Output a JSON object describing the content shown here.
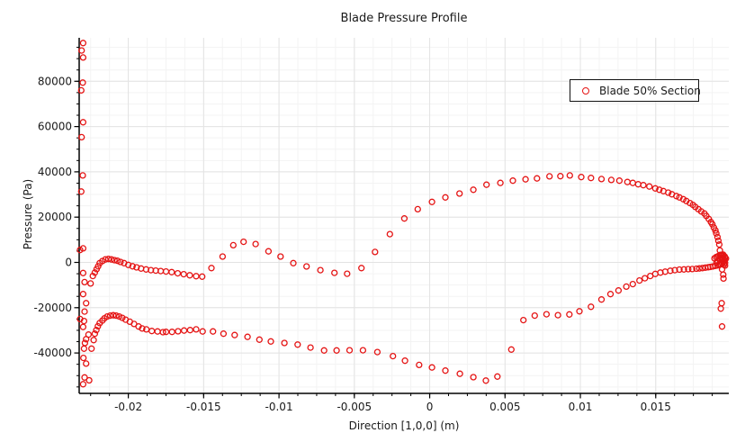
{
  "chart_data": {
    "type": "scatter",
    "title": "Blade Pressure Profile",
    "xlabel": "Direction [1,0,0] (m)",
    "ylabel": "Pressure (Pa)",
    "xlim": [
      -0.02326,
      0.01985
    ],
    "ylim": [
      -57850,
      99200
    ],
    "grid": true,
    "grid_major_color": "#e3e3e3",
    "grid_minor_color": "#f3f3f3",
    "axis_color": "#000000",
    "x_major_ticks": {
      "values": [
        -0.02,
        -0.015,
        -0.01,
        -0.005,
        0,
        0.005,
        0.01,
        0.015
      ],
      "labels": [
        "-0.02",
        "-0.015",
        "-0.01",
        "-0.005",
        "0",
        "0.005",
        "0.01",
        "0.015"
      ]
    },
    "x_minor_step": 0.00125,
    "y_major_ticks": {
      "values": [
        80000,
        60000,
        40000,
        20000,
        0,
        -20000,
        -40000
      ],
      "labels": [
        "80000",
        "60000",
        "40000",
        "20000",
        "0",
        "-20000",
        "-40000"
      ]
    },
    "y_minor_step": 5000,
    "legend": {
      "position": "top-right",
      "label": "Blade 50% Section"
    },
    "marker": {
      "shape": "open-circle",
      "color": "#e51414",
      "radius": 3
    },
    "series": [
      {
        "name": "Blade 50% Section",
        "points": [
          [
            -0.023,
            96900
          ],
          [
            -0.0231,
            93600
          ],
          [
            -0.023,
            90500
          ],
          [
            -0.02302,
            79400
          ],
          [
            -0.02312,
            76000
          ],
          [
            -0.023,
            61900
          ],
          [
            -0.0231,
            55300
          ],
          [
            -0.02302,
            38400
          ],
          [
            -0.02312,
            31300
          ],
          [
            -0.023,
            6200
          ],
          [
            -0.0232,
            5500
          ],
          [
            -0.023,
            -4700
          ],
          [
            -0.0229,
            -8700
          ],
          [
            -0.0225,
            -9300
          ],
          [
            -0.02235,
            -6000
          ],
          [
            -0.02222,
            -4500
          ],
          [
            -0.0221,
            -3000
          ],
          [
            -0.022,
            -1700
          ],
          [
            -0.0219,
            -300
          ],
          [
            -0.02172,
            600
          ],
          [
            -0.02152,
            1300
          ],
          [
            -0.02132,
            1500
          ],
          [
            -0.02112,
            1300
          ],
          [
            -0.02092,
            1000
          ],
          [
            -0.02072,
            700
          ],
          [
            -0.02052,
            200
          ],
          [
            -0.02028,
            -300
          ],
          [
            -0.02,
            -1100
          ],
          [
            -0.01972,
            -1700
          ],
          [
            -0.01945,
            -2200
          ],
          [
            -0.01915,
            -2700
          ],
          [
            -0.01882,
            -3100
          ],
          [
            -0.0185,
            -3400
          ],
          [
            -0.01818,
            -3600
          ],
          [
            -0.01785,
            -3800
          ],
          [
            -0.0175,
            -4000
          ],
          [
            -0.01712,
            -4300
          ],
          [
            -0.01672,
            -4800
          ],
          [
            -0.01632,
            -5200
          ],
          [
            -0.01592,
            -5700
          ],
          [
            -0.0155,
            -6100
          ],
          [
            -0.0151,
            -6300
          ],
          [
            -0.01448,
            -2500
          ],
          [
            -0.01374,
            2600
          ],
          [
            -0.01303,
            7600
          ],
          [
            -0.01235,
            9100
          ],
          [
            -0.01155,
            8100
          ],
          [
            -0.0107,
            4900
          ],
          [
            -0.0099,
            2600
          ],
          [
            -0.00905,
            -300
          ],
          [
            -0.00817,
            -1800
          ],
          [
            -0.00725,
            -3400
          ],
          [
            -0.00632,
            -4600
          ],
          [
            -0.00548,
            -5000
          ],
          [
            -0.00453,
            -2500
          ],
          [
            -0.00363,
            4600
          ],
          [
            -0.00264,
            12500
          ],
          [
            -0.00168,
            19400
          ],
          [
            -0.00079,
            23500
          ],
          [
            0.00015,
            26700
          ],
          [
            0.00104,
            28700
          ],
          [
            0.00198,
            30400
          ],
          [
            0.0029,
            32100
          ],
          [
            0.00377,
            34300
          ],
          [
            0.00469,
            35100
          ],
          [
            0.00552,
            36100
          ],
          [
            0.00636,
            36700
          ],
          [
            0.00712,
            37100
          ],
          [
            0.00795,
            38000
          ],
          [
            0.00867,
            38100
          ],
          [
            0.0093,
            38400
          ],
          [
            0.01006,
            37700
          ],
          [
            0.0107,
            37300
          ],
          [
            0.0114,
            36800
          ],
          [
            0.01205,
            36400
          ],
          [
            0.01259,
            36100
          ],
          [
            0.01312,
            35500
          ],
          [
            0.01348,
            35100
          ],
          [
            0.01384,
            34500
          ],
          [
            0.01418,
            34100
          ],
          [
            0.01458,
            33500
          ],
          [
            0.01497,
            32700
          ],
          [
            0.01524,
            32100
          ],
          [
            0.01551,
            31500
          ],
          [
            0.01583,
            30800
          ],
          [
            0.01607,
            30100
          ],
          [
            0.01637,
            29300
          ],
          [
            0.01657,
            28700
          ],
          [
            0.01683,
            27900
          ],
          [
            0.01703,
            27100
          ],
          [
            0.01727,
            26200
          ],
          [
            0.01747,
            25400
          ],
          [
            0.01763,
            24500
          ],
          [
            0.01783,
            23500
          ],
          [
            0.01802,
            22500
          ],
          [
            0.01823,
            21600
          ],
          [
            0.01836,
            20500
          ],
          [
            0.01852,
            19200
          ],
          [
            0.01866,
            17800
          ],
          [
            0.01876,
            16800
          ],
          [
            0.01886,
            15400
          ],
          [
            0.01896,
            14100
          ],
          [
            0.01902,
            12800
          ],
          [
            0.0191,
            11200
          ],
          [
            0.01916,
            9600
          ],
          [
            0.01922,
            7900
          ],
          [
            0.01926,
            5300
          ],
          [
            0.0193,
            3300
          ],
          [
            0.0189,
            1800
          ],
          [
            0.019,
            2300
          ],
          [
            0.0191,
            2600
          ],
          [
            0.01918,
            2900
          ],
          [
            0.01928,
            3100
          ],
          [
            0.01938,
            3300
          ],
          [
            0.01948,
            3400
          ],
          [
            0.0195,
            2900
          ],
          [
            0.01958,
            2600
          ],
          [
            0.0196,
            2100
          ],
          [
            0.01966,
            1700
          ],
          [
            0.0195,
            1400
          ],
          [
            0.0194,
            1000
          ],
          [
            0.01958,
            800
          ],
          [
            0.0195,
            300
          ],
          [
            0.0196,
            -200
          ],
          [
            0.01942,
            -600
          ],
          [
            0.01952,
            -1000
          ],
          [
            0.0196,
            -1400
          ],
          [
            0.01934,
            2000
          ],
          [
            0.01924,
            1200
          ],
          [
            0.01912,
            500
          ],
          [
            0.01904,
            -100
          ],
          [
            0.0194,
            -3100
          ],
          [
            0.01948,
            -5400
          ],
          [
            0.0195,
            -7100
          ],
          [
            0.01938,
            -18000
          ],
          [
            0.01932,
            -20400
          ],
          [
            0.0194,
            -28300
          ],
          [
            -0.023,
            -14000
          ],
          [
            -0.0228,
            -18000
          ],
          [
            -0.0229,
            -21700
          ],
          [
            -0.0232,
            -25000
          ],
          [
            -0.02294,
            -25900
          ],
          [
            -0.023,
            -28500
          ],
          [
            -0.02264,
            -31900
          ],
          [
            -0.0228,
            -33900
          ],
          [
            -0.02288,
            -35600
          ],
          [
            -0.02294,
            -38100
          ],
          [
            -0.02298,
            -42200
          ],
          [
            -0.0228,
            -44700
          ],
          [
            -0.0229,
            -50800
          ],
          [
            -0.023,
            -53800
          ],
          [
            -0.0226,
            -52100
          ],
          [
            -0.02244,
            -38100
          ],
          [
            -0.0223,
            -34300
          ],
          [
            -0.02222,
            -31500
          ],
          [
            -0.02212,
            -29900
          ],
          [
            -0.02202,
            -28200
          ],
          [
            -0.0219,
            -26800
          ],
          [
            -0.02172,
            -25700
          ],
          [
            -0.02158,
            -24700
          ],
          [
            -0.0214,
            -23900
          ],
          [
            -0.0212,
            -23500
          ],
          [
            -0.021,
            -23350
          ],
          [
            -0.0208,
            -23500
          ],
          [
            -0.0206,
            -23900
          ],
          [
            -0.0204,
            -24500
          ],
          [
            -0.02018,
            -25300
          ],
          [
            -0.0199,
            -26200
          ],
          [
            -0.01962,
            -27200
          ],
          [
            -0.01932,
            -28300
          ],
          [
            -0.01908,
            -29200
          ],
          [
            -0.0188,
            -29600
          ],
          [
            -0.01844,
            -30300
          ],
          [
            -0.01806,
            -30500
          ],
          [
            -0.0177,
            -30800
          ],
          [
            -0.0175,
            -30700
          ],
          [
            -0.0171,
            -30700
          ],
          [
            -0.0167,
            -30400
          ],
          [
            -0.0163,
            -30100
          ],
          [
            -0.0159,
            -29900
          ],
          [
            -0.0155,
            -29600
          ],
          [
            -0.01507,
            -30500
          ],
          [
            -0.01438,
            -30500
          ],
          [
            -0.01368,
            -31500
          ],
          [
            -0.01294,
            -32100
          ],
          [
            -0.01209,
            -32900
          ],
          [
            -0.0113,
            -34100
          ],
          [
            -0.01054,
            -34900
          ],
          [
            -0.00964,
            -35600
          ],
          [
            -0.00876,
            -36300
          ],
          [
            -0.00791,
            -37600
          ],
          [
            -0.00701,
            -38900
          ],
          [
            -0.00618,
            -38900
          ],
          [
            -0.00532,
            -38800
          ],
          [
            -0.00443,
            -38800
          ],
          [
            -0.00347,
            -39600
          ],
          [
            -0.00244,
            -41400
          ],
          [
            -0.00164,
            -43400
          ],
          [
            -0.0007,
            -45300
          ],
          [
            0.00015,
            -46400
          ],
          [
            0.00104,
            -47800
          ],
          [
            0.002,
            -49200
          ],
          [
            0.0029,
            -50700
          ],
          [
            0.00373,
            -52200
          ],
          [
            0.00449,
            -50400
          ],
          [
            0.00542,
            -38500
          ],
          [
            0.00622,
            -25500
          ],
          [
            0.00697,
            -23500
          ],
          [
            0.00775,
            -22900
          ],
          [
            0.00851,
            -23300
          ],
          [
            0.00927,
            -23000
          ],
          [
            0.00994,
            -21600
          ],
          [
            0.0107,
            -19600
          ],
          [
            0.0114,
            -16400
          ],
          [
            0.012,
            -14000
          ],
          [
            0.01253,
            -12400
          ],
          [
            0.01305,
            -10700
          ],
          [
            0.01348,
            -9600
          ],
          [
            0.01392,
            -8000
          ],
          [
            0.01428,
            -7000
          ],
          [
            0.01464,
            -6000
          ],
          [
            0.01497,
            -5100
          ],
          [
            0.01531,
            -4500
          ],
          [
            0.01563,
            -4100
          ],
          [
            0.01597,
            -3700
          ],
          [
            0.01627,
            -3400
          ],
          [
            0.01657,
            -3200
          ],
          [
            0.01687,
            -3100
          ],
          [
            0.01716,
            -3000
          ],
          [
            0.01742,
            -2950
          ],
          [
            0.0177,
            -2800
          ],
          [
            0.0179,
            -2650
          ],
          [
            0.0181,
            -2500
          ],
          [
            0.0183,
            -2300
          ],
          [
            0.01848,
            -2150
          ],
          [
            0.01862,
            -2000
          ],
          [
            0.01878,
            -1800
          ],
          [
            0.01896,
            -1500
          ],
          [
            0.0191,
            -1300
          ],
          [
            0.0192,
            -1100
          ],
          [
            0.0193,
            -850
          ]
        ]
      }
    ]
  }
}
